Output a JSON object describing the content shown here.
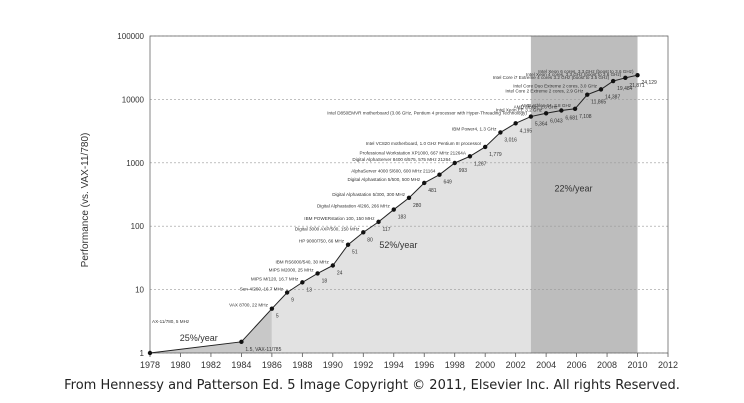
{
  "chart_data": {
    "type": "scatter",
    "ylabel": "Performance (vs. VAX-11/780)",
    "xlim": [
      1978,
      2012
    ],
    "ylim": [
      1,
      100000
    ],
    "y_scale": "log",
    "grid": true,
    "x_ticks": [
      "1978",
      "1980",
      "1982",
      "1984",
      "1986",
      "1988",
      "1990",
      "1992",
      "1994",
      "1996",
      "1998",
      "2000",
      "2002",
      "2004",
      "2006",
      "2008",
      "2010",
      "2012"
    ],
    "y_ticks": [
      {
        "v": 1,
        "label": "1"
      },
      {
        "v": 10,
        "label": "10"
      },
      {
        "v": 100,
        "label": "100"
      },
      {
        "v": 1000,
        "label": "1000"
      },
      {
        "v": 10000,
        "label": "10000"
      },
      {
        "v": 100000,
        "label": "100000"
      }
    ],
    "regions": [
      {
        "x0": 1978,
        "x1": 1986,
        "color": "#c8c8c8",
        "label": "25%/year",
        "lx": 1981.2,
        "ly": 1.55
      },
      {
        "x0": 1986,
        "x1": 2003,
        "color": "#e2e2e2",
        "label": "52%/year",
        "lx": 1994.3,
        "ly": 45
      },
      {
        "x0": 2003,
        "x1": 2010,
        "color": "#bdbdbd",
        "label": "22%/year",
        "lx": 2005.8,
        "ly": 350
      }
    ],
    "series": [
      {
        "points": [
          {
            "x": 1978,
            "y": 1,
            "value_label": "",
            "name": "AX-11/780, 5 MHz"
          },
          {
            "x": 1984,
            "y": 1.5,
            "value_label": "1.5, VAX-11/785",
            "name": ""
          },
          {
            "x": 1986,
            "y": 5,
            "value_label": "5",
            "name": "VAX 8700, 22 MHz"
          },
          {
            "x": 1987,
            "y": 9,
            "value_label": "9",
            "name": "Sun-4/260, 16.7 MHz"
          },
          {
            "x": 1988,
            "y": 13,
            "value_label": "13",
            "name": "MIPS M/120, 16.7 MHz"
          },
          {
            "x": 1989,
            "y": 18,
            "value_label": "18",
            "name": "MIPS M2000, 25 MHz"
          },
          {
            "x": 1990,
            "y": 24,
            "value_label": "24",
            "name": "IBM RS6000/540, 30 MHz"
          },
          {
            "x": 1991,
            "y": 51,
            "value_label": "51",
            "name": "HP 9000/750, 66 MHz"
          },
          {
            "x": 1992,
            "y": 80,
            "value_label": "80",
            "name": "Digital 3000 AXP/500, 150 MHz"
          },
          {
            "x": 1993,
            "y": 117,
            "value_label": "117",
            "name": "IBM POWERstation 100, 150 MHz"
          },
          {
            "x": 1994,
            "y": 183,
            "value_label": "183",
            "name": "Digital Alphastation 4/266, 266 MHz"
          },
          {
            "x": 1995,
            "y": 280,
            "value_label": "280",
            "name": "Digital Alphastation 5/300, 300 MHz"
          },
          {
            "x": 1996,
            "y": 481,
            "value_label": "481",
            "name": "Digital Alphastation 5/500, 500 MHz"
          },
          {
            "x": 1997,
            "y": 649,
            "value_label": "649",
            "name": "AlphaServer 4000 5/600, 600 MHz 21164"
          },
          {
            "x": 1998,
            "y": 993,
            "value_label": "993",
            "name": "Digital AlphaServer 8400 6/575, 575 MHz 21264"
          },
          {
            "x": 1999,
            "y": 1267,
            "value_label": "1,267",
            "name": "Professional Workstation XP1000, 667 MHz 21264A"
          },
          {
            "x": 2000,
            "y": 1779,
            "value_label": "1,779",
            "name": "Intel VC820 motherboard, 1.0 GHz Pentium III processor"
          },
          {
            "x": 2001,
            "y": 3016,
            "value_label": "3,016",
            "name": "IBM Power4, 1.3 GHz"
          },
          {
            "x": 2002,
            "y": 4195,
            "value_label": "4,195",
            "name": ""
          },
          {
            "x": 2003,
            "y": 5364,
            "value_label": "5,364",
            "name": "Intel D850EMVR motherboard (3.06 GHz, Pentium 4 processor with Hyper-Threading Technology)"
          },
          {
            "x": 2004,
            "y": 6043,
            "value_label": "6,043",
            "name": "Intel Xeon EE 3.2 GHz"
          },
          {
            "x": 2005,
            "y": 6681,
            "value_label": "6,681",
            "name": "AMD Athlon, 2.6 GHz"
          },
          {
            "x": 2005.9,
            "y": 7108,
            "value_label": "7,108",
            "name": "AMD Athlon 64, 2.8 GHz"
          },
          {
            "x": 2006.7,
            "y": 11865,
            "value_label": "11,865",
            "name": "Intel Core 2 Extreme 2 cores, 2.9 GHz"
          },
          {
            "x": 2007.6,
            "y": 14387,
            "value_label": "14,387",
            "name": "Intel Core Duo Extreme 2 cores, 3.0 GHz"
          },
          {
            "x": 2008.4,
            "y": 19484,
            "value_label": "19,484",
            "name": "Intel Core i7 Extreme 4 cores 3.2 GHz (boost to 3.5 GHz)"
          },
          {
            "x": 2009.2,
            "y": 21871,
            "value_label": "21,871",
            "name": "Intel Xeon 4 cores, 3.3 GHz (boost to 3.6 GHz)"
          },
          {
            "x": 2010,
            "y": 24129,
            "value_label": "24,129",
            "name": "Intel Xeon 6 cores, 3.3 GHz (boost to 3.6 GHz)"
          }
        ]
      }
    ]
  },
  "caption": "From Hennessy and Patterson Ed. 5 Image Copyright © 2011, Elsevier Inc. All rights Reserved."
}
